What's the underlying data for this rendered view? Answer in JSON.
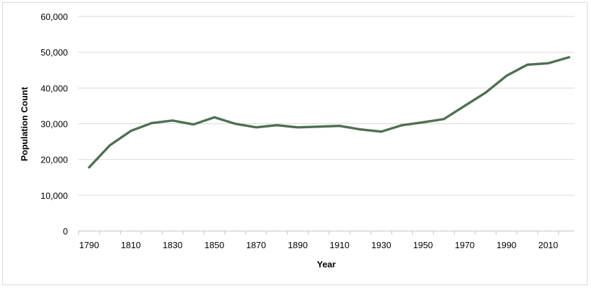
{
  "chart_data": {
    "type": "line",
    "title": "",
    "xlabel": "Year",
    "ylabel": "Population Count",
    "ylim": [
      0,
      60000
    ],
    "y_ticks": [
      "0",
      "10,000",
      "20,000",
      "30,000",
      "40,000",
      "50,000",
      "60,000"
    ],
    "y_tick_values": [
      0,
      10000,
      20000,
      30000,
      40000,
      50000,
      60000
    ],
    "x_ticks": [
      "1790",
      "1810",
      "1830",
      "1850",
      "1870",
      "1890",
      "1910",
      "1930",
      "1950",
      "1970",
      "1990",
      "2010"
    ],
    "x_tick_values": [
      1790,
      1810,
      1830,
      1850,
      1870,
      1890,
      1910,
      1930,
      1950,
      1970,
      1990,
      2010
    ],
    "grid": true,
    "legend": "none",
    "series": [
      {
        "color": "#4f6f52",
        "x": [
          1790,
          1800,
          1810,
          1820,
          1830,
          1840,
          1850,
          1860,
          1870,
          1880,
          1890,
          1900,
          1910,
          1920,
          1930,
          1940,
          1950,
          1960,
          1970,
          1980,
          1990,
          2000,
          2010,
          2020
        ],
        "values": [
          17800,
          24000,
          28000,
          30200,
          30900,
          29800,
          31800,
          30000,
          29000,
          29600,
          29000,
          29200,
          29400,
          28400,
          27800,
          29600,
          30400,
          31300,
          35000,
          38700,
          43400,
          46500,
          46900,
          48600
        ]
      }
    ]
  }
}
